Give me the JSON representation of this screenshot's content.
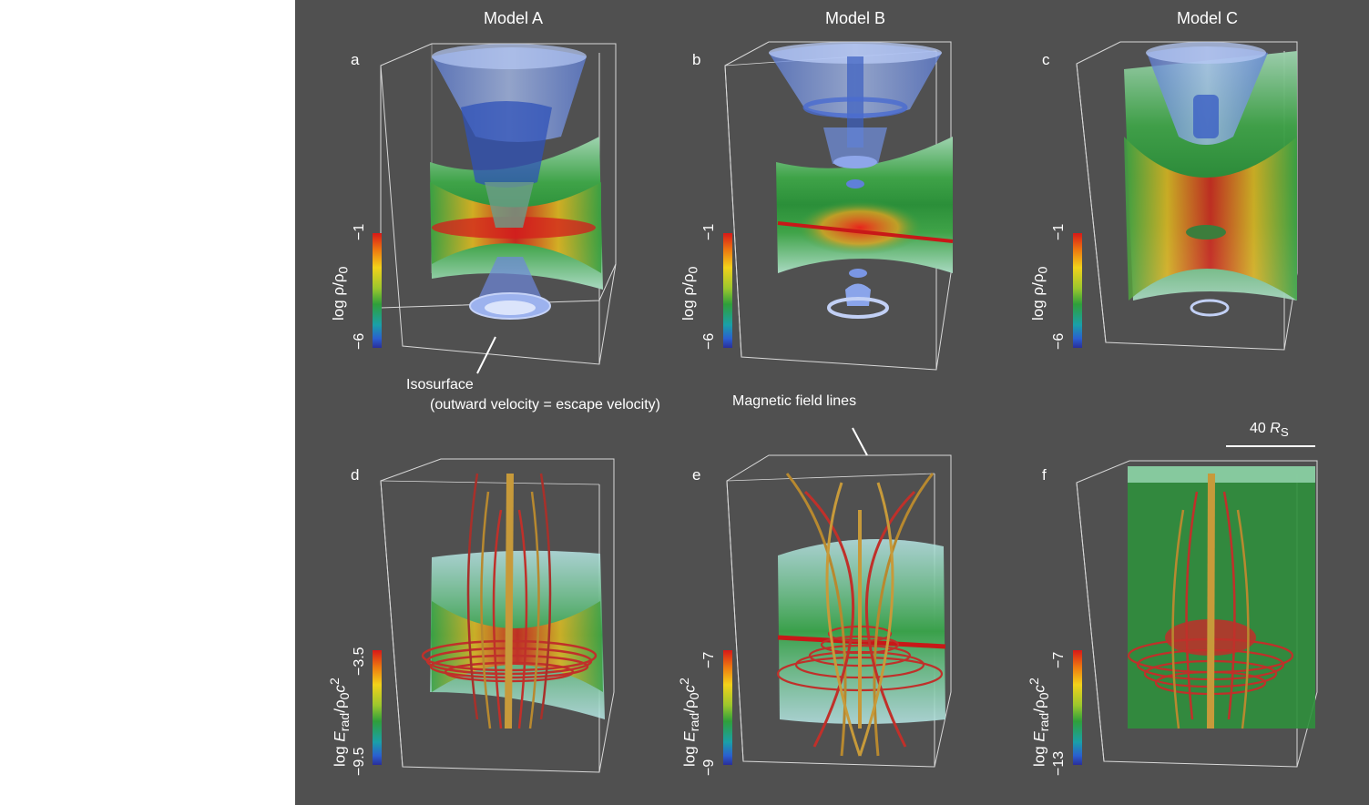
{
  "models": [
    "Model A",
    "Model B",
    "Model C"
  ],
  "panels": [
    "a",
    "b",
    "c",
    "d",
    "e",
    "f"
  ],
  "colorbars": [
    {
      "label_html": "log ρ/ρ<sub>0</sub>",
      "max": "−1",
      "min": "−6"
    },
    {
      "label_html": "log ρ/ρ<sub>0</sub>",
      "max": "−1",
      "min": "−6"
    },
    {
      "label_html": "log ρ/ρ<sub>0</sub>",
      "max": "−1",
      "min": "−6"
    },
    {
      "label_html": "log <i>E</i><sub>rad</sub>/ρ<sub>0</sub><i>c</i><sup>2</sup>",
      "max": "−3.5",
      "min": "−9.5"
    },
    {
      "label_html": "log <i>E</i><sub>rad</sub>/ρ<sub>0</sub><i>c</i><sup>2</sup>",
      "max": "−7",
      "min": "−9"
    },
    {
      "label_html": "log <i>E</i><sub>rad</sub>/ρ<sub>0</sub><i>c</i><sup>2</sup>",
      "max": "−7",
      "min": "−13"
    }
  ],
  "annotations": {
    "isosurface_line1": "Isosurface",
    "isosurface_line2": "(outward velocity = escape velocity)",
    "field_lines": "Magnetic field lines",
    "scale_bar_html": "40 <i>R</i><sub>S</sub>"
  },
  "colors": {
    "background": "#505050",
    "disk_green": "#3aa64a",
    "disk_red": "#d42020",
    "isosurface_blue": "#8aa8ee",
    "field_line_red": "#c0302a",
    "field_line_gold": "#c79a3a"
  }
}
